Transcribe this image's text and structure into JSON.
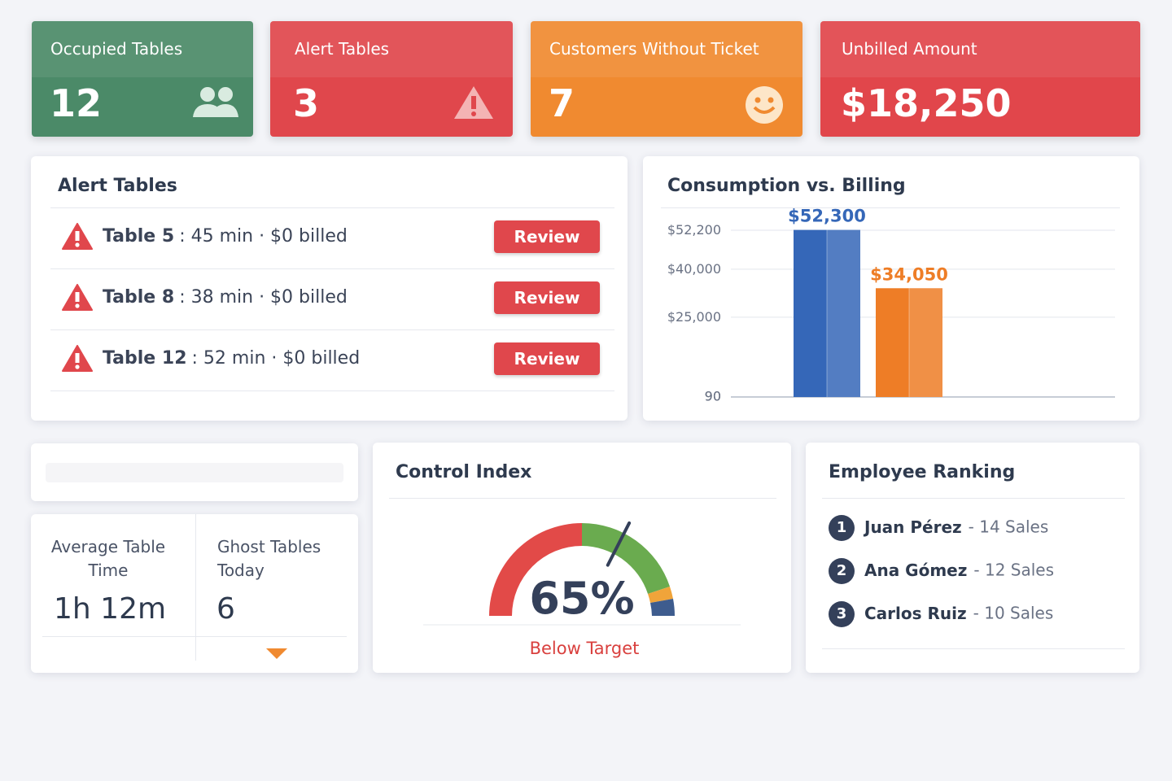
{
  "kpis": [
    {
      "label": "Occupied Tables",
      "value": "12"
    },
    {
      "label": "Alert Tables",
      "value": "3"
    },
    {
      "label": "Customers Without Ticket",
      "value": "7"
    },
    {
      "label": "Unbilled Amount",
      "value": "$18,250"
    }
  ],
  "alerts": {
    "title": "Alert Tables",
    "rows": [
      {
        "table": "Table 5",
        "detail": ": 45 min · $0 billed",
        "action": "Review"
      },
      {
        "table": "Table 8",
        "detail": ": 38 min · $0 billed",
        "action": "Review"
      },
      {
        "table": "Table 12",
        "detail": ": 52 min · $0 billed",
        "action": "Review"
      }
    ]
  },
  "chart_data": {
    "type": "bar",
    "title": "Consumption vs. Billing",
    "categories": [
      null,
      null
    ],
    "values": [
      52300,
      34050
    ],
    "value_labels": [
      "$52,300",
      "$34,050"
    ],
    "colors": [
      "#3567b8",
      "#ee7d26"
    ],
    "ylim": [
      0,
      55000
    ],
    "yticks": [
      {
        "value": 52200,
        "label": "$52,200"
      },
      {
        "value": 40000,
        "label": "$40,000"
      },
      {
        "value": 25000,
        "label": "$25,000"
      },
      90,
      90
    ],
    "grid": true
  },
  "stats": [
    {
      "label": "Average Table Time",
      "value": "1h 12m"
    },
    {
      "label": "Ghost Tables Today",
      "value": "6"
    }
  ],
  "control": {
    "title": "Control Index",
    "value": 65,
    "value_label": "65%",
    "status": "Below Target"
  },
  "ranking": {
    "title": "Employee Ranking",
    "rows": [
      {
        "rank": "1",
        "name": "Juan Pérez",
        "detail": "- 14 Sales"
      },
      {
        "rank": "2",
        "name": "Ana Gómez",
        "detail": "- 12 Sales"
      },
      {
        "rank": "3",
        "name": "Carlos Ruiz",
        "detail": "- 10 Sales"
      }
    ]
  }
}
